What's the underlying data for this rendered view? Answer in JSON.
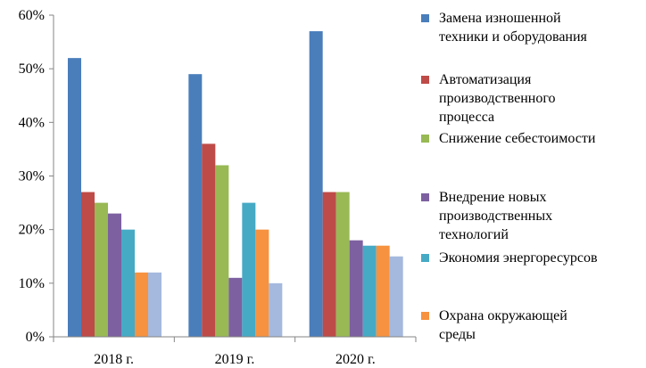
{
  "chart_data": {
    "type": "bar",
    "categories": [
      "2018 г.",
      "2019 г.",
      "2020 г."
    ],
    "y_ticks": [
      "0%",
      "10%",
      "20%",
      "30%",
      "40%",
      "50%",
      "60%"
    ],
    "ylim": [
      0,
      60
    ],
    "value_unit": "%",
    "grid": false,
    "legend_position": "right",
    "series": [
      {
        "name": "Замена изношенной\nтехники и оборудования",
        "color": "#4a7ebb",
        "values": [
          52,
          49,
          57
        ]
      },
      {
        "name": "Автоматизация\nпроизводственного\nпроцесса",
        "color": "#be4b48",
        "values": [
          27,
          36,
          27
        ]
      },
      {
        "name": "Снижение себестоимости",
        "color": "#98b954",
        "values": [
          25,
          32,
          27
        ]
      },
      {
        "name": "Внедрение новых\nпроизводственных\nтехнологий",
        "color": "#7d60a0",
        "values": [
          23,
          11,
          18
        ]
      },
      {
        "name": "Экономия энергоресурсов",
        "color": "#46aac5",
        "values": [
          20,
          25,
          17
        ]
      },
      {
        "name": "Охрана окружающей\nсреды",
        "color": "#f69240",
        "values": [
          12,
          20,
          17
        ]
      },
      {
        "name": "",
        "color": "#a5b9de",
        "values": [
          12,
          10,
          15
        ]
      }
    ]
  }
}
